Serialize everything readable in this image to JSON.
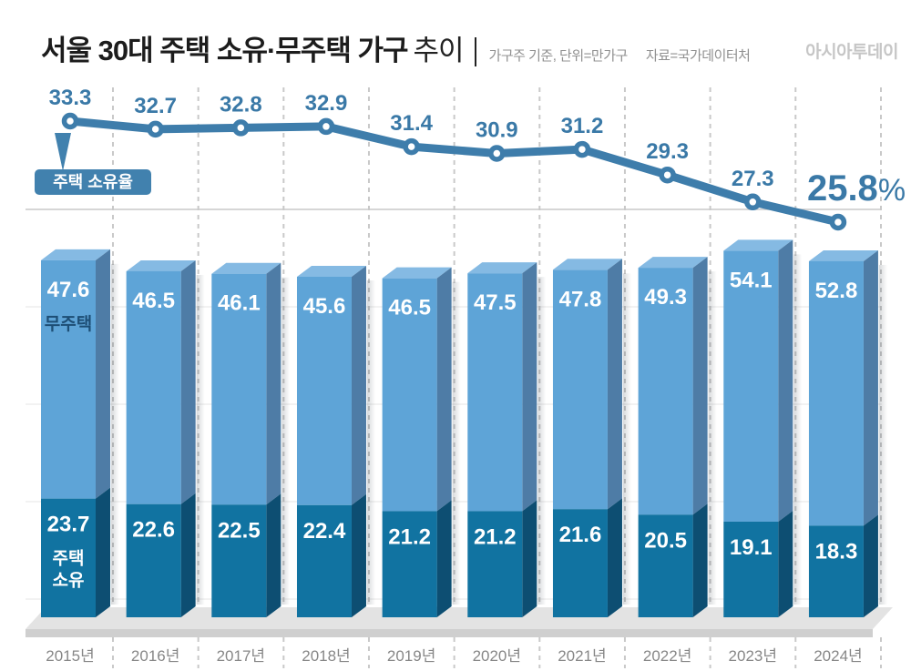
{
  "header": {
    "title_main": "서울 30대 주택 소유·무주택 가구",
    "title_sub": "추이",
    "note_unit": "가구주 기준, 단위=만가구",
    "note_source": "자료=국가데이터처",
    "logo": "아시아투데이"
  },
  "colors": {
    "line": "#3E7DAB",
    "line_label": "#3A79A7",
    "bubble_bg": "#4181AE",
    "bubble_text": "#FFFFFF",
    "bar_light_front": "#5EA4D7",
    "bar_light_top": "#85BAE3",
    "bar_light_side": "#4E7CA6",
    "bar_dark_front": "#1173A1",
    "bar_dark_side": "#0D4E72",
    "bar_value_text": "#FFFFFF",
    "bar_label_navy": "#1D4E75",
    "axis_text": "#878787",
    "grid_dash": "#C9C9C9",
    "grid_faint": "#E4E4E4",
    "separator": "#C9C9C9",
    "floor": "#E3E3E3",
    "floor_edge": "#CFCFCF"
  },
  "chart_data": {
    "type": "combo: line + stacked 3d bar",
    "title": "서울 30대 주택 소유·무주택 가구 추이",
    "unit": "만가구",
    "source": "국가데이터처",
    "categories": [
      "2015년",
      "2016년",
      "2017년",
      "2018년",
      "2019년",
      "2020년",
      "2021년",
      "2022년",
      "2023년",
      "2024년"
    ],
    "line_series": {
      "name": "주택 소유율",
      "unit": "%",
      "values": [
        33.3,
        32.7,
        32.8,
        32.9,
        31.4,
        30.9,
        31.2,
        29.3,
        27.3,
        25.8
      ],
      "last_label": "25.8%"
    },
    "bar_series": [
      {
        "name": "무주택",
        "position": "top",
        "values": [
          47.6,
          46.5,
          46.1,
          45.6,
          46.5,
          47.5,
          47.8,
          49.3,
          54.1,
          52.8
        ]
      },
      {
        "name": "주택 소유",
        "name_lines": [
          "주택",
          "소유"
        ],
        "position": "bottom",
        "values": [
          23.7,
          22.6,
          22.5,
          22.4,
          21.2,
          21.2,
          21.6,
          20.5,
          19.1,
          18.3
        ]
      }
    ],
    "legend": {
      "line_bubble": "주택 소유율",
      "bar_top_label": "무주택",
      "bar_bottom_label": [
        "주택",
        "소유"
      ]
    },
    "grid": "vertical dashed per year + faint horizontal lines"
  }
}
